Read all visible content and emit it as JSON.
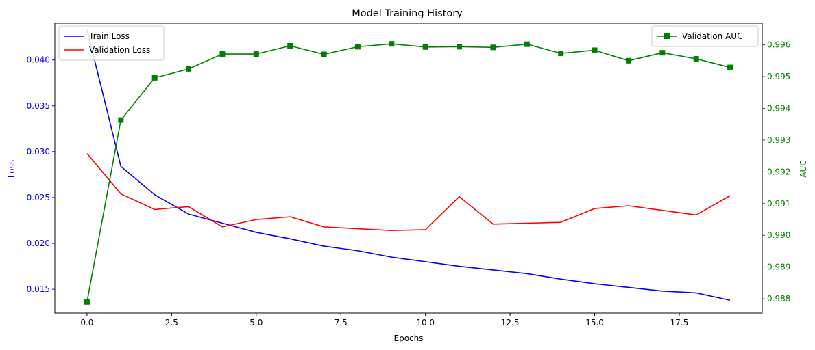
{
  "chart_data": {
    "type": "line",
    "title": "Model Training History",
    "xlabel": "Epochs",
    "ylabel_left": "Loss",
    "ylabel_right": "AUC",
    "x": [
      0,
      1,
      2,
      3,
      4,
      5,
      6,
      7,
      8,
      9,
      10,
      11,
      12,
      13,
      14,
      15,
      16,
      17,
      18,
      19
    ],
    "xlim": [
      -0.95,
      19.95
    ],
    "xticks": [
      0.0,
      2.5,
      5.0,
      7.5,
      10.0,
      12.5,
      15.0,
      17.5
    ],
    "xtick_labels": [
      "0.0",
      "2.5",
      "5.0",
      "7.5",
      "10.0",
      "12.5",
      "15.0",
      "17.5"
    ],
    "ylim_left": [
      0.0124,
      0.044
    ],
    "yticks_left": [
      0.015,
      0.02,
      0.025,
      0.03,
      0.035,
      0.04
    ],
    "ytick_labels_left": [
      "0.015",
      "0.020",
      "0.025",
      "0.030",
      "0.035",
      "0.040"
    ],
    "ylim_right": [
      0.98755,
      0.99668
    ],
    "yticks_right": [
      0.988,
      0.989,
      0.99,
      0.991,
      0.992,
      0.993,
      0.994,
      0.995,
      0.996
    ],
    "ytick_labels_right": [
      "0.988",
      "0.989",
      "0.990",
      "0.991",
      "0.992",
      "0.993",
      "0.994",
      "0.995",
      "0.996"
    ],
    "series": [
      {
        "name": "Train Loss",
        "axis": "left",
        "color": "#0000ff",
        "marker": "none",
        "values": [
          0.0433,
          0.0284,
          0.0253,
          0.0232,
          0.0222,
          0.0212,
          0.0205,
          0.0197,
          0.0192,
          0.0185,
          0.018,
          0.0175,
          0.0171,
          0.0167,
          0.0161,
          0.0156,
          0.0152,
          0.0148,
          0.0146,
          0.0138
        ]
      },
      {
        "name": "Validation Loss",
        "axis": "left",
        "color": "#ff0000",
        "marker": "none",
        "values": [
          0.0298,
          0.0254,
          0.0237,
          0.024,
          0.0218,
          0.0226,
          0.0229,
          0.0218,
          0.0216,
          0.0214,
          0.0215,
          0.0251,
          0.0221,
          0.0222,
          0.0223,
          0.0238,
          0.0241,
          0.0236,
          0.0231,
          0.0252
        ]
      },
      {
        "name": "Validation AUC",
        "axis": "right",
        "color": "#008000",
        "marker": "square",
        "values": [
          0.9879,
          0.99363,
          0.99496,
          0.99524,
          0.99571,
          0.99571,
          0.99597,
          0.9957,
          0.99594,
          0.99603,
          0.99593,
          0.99594,
          0.99592,
          0.99602,
          0.99573,
          0.99583,
          0.9955,
          0.99575,
          0.99556,
          0.99529
        ]
      }
    ],
    "legend_left_placement": "upper-left",
    "legend_right_placement": "upper-right",
    "grid": false,
    "colors": {
      "left_axis": "#0000ff",
      "right_axis": "#008000",
      "axes": "#000000"
    }
  }
}
